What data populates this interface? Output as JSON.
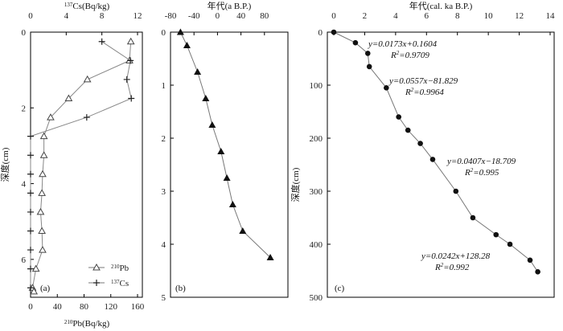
{
  "chart_data": [
    {
      "panel": "a",
      "type": "line",
      "panel_label": "(a)",
      "top_axis_title": "137Cs(Bq/kg)",
      "top_axis_sup": "137",
      "top_axis_rest": "Cs(Bq/kg)",
      "bottom_axis_title": "210Pb(Bq/kg)",
      "bottom_axis_sup": "210",
      "bottom_axis_rest": "Pb(Bq/kg)",
      "ylabel": "深度(cm)",
      "ylim": [
        0,
        7
      ],
      "top_xlim": [
        0,
        12
      ],
      "bottom_xlim": [
        0,
        160
      ],
      "y_ticks": [
        "0",
        "2",
        "4",
        "6"
      ],
      "top_ticks": [
        "0",
        "4",
        "8",
        "12"
      ],
      "bottom_ticks": [
        "0",
        "40",
        "80",
        "120",
        "160"
      ],
      "legend": [
        {
          "sup": "210",
          "rest": "Pb",
          "marker": "triangle"
        },
        {
          "sup": "137",
          "rest": "Cs",
          "marker": "plus"
        }
      ],
      "series": [
        {
          "name": "210Pb",
          "marker": "triangle",
          "axis": "bottom",
          "x": [
            150,
            148,
            85,
            57,
            30,
            20,
            20,
            18,
            17,
            15,
            17,
            18,
            8,
            3,
            5
          ],
          "y": [
            0.25,
            0.75,
            1.25,
            1.75,
            2.25,
            2.75,
            3.25,
            3.75,
            4.25,
            4.75,
            5.25,
            5.75,
            6.25,
            6.75,
            6.85
          ]
        },
        {
          "name": "137Cs",
          "marker": "plus",
          "axis": "top",
          "x": [
            8.0,
            11.2,
            10.8,
            11.3,
            6.3,
            0,
            0,
            0,
            0,
            0,
            0,
            0,
            0,
            0
          ],
          "y": [
            0.25,
            0.75,
            1.25,
            1.75,
            2.25,
            2.75,
            3.25,
            3.75,
            4.25,
            4.75,
            5.25,
            5.75,
            6.25,
            6.75
          ]
        }
      ]
    },
    {
      "panel": "b",
      "type": "line",
      "panel_label": "(b)",
      "top_axis_title": "年代(a B.P.)",
      "xlim": [
        -80,
        120
      ],
      "ylim": [
        0,
        5
      ],
      "top_ticks": [
        "-80",
        "-40",
        "0",
        "40",
        "80"
      ],
      "y_ticks": [
        "0",
        "1",
        "2",
        "3",
        "4",
        "5"
      ],
      "series": [
        {
          "name": "age",
          "marker": "triangle-filled",
          "x": [
            -63,
            -52,
            -34,
            -20,
            -9,
            6,
            16,
            26,
            43,
            90
          ],
          "y": [
            0.0,
            0.25,
            0.75,
            1.25,
            1.75,
            2.25,
            2.75,
            3.25,
            3.75,
            4.25
          ]
        }
      ]
    },
    {
      "panel": "c",
      "type": "scatter",
      "panel_label": "(c)",
      "top_axis_title": "年代(cal. ka B.P.)",
      "ylabel": "深度(cm)",
      "xlim": [
        0,
        14
      ],
      "ylim": [
        0,
        500
      ],
      "top_ticks": [
        "0",
        "2",
        "4",
        "6",
        "8",
        "10",
        "12",
        "14"
      ],
      "y_ticks": [
        "0",
        "100",
        "200",
        "300",
        "400",
        "500"
      ],
      "series": [
        {
          "name": "depth-age",
          "marker": "circle",
          "x": [
            0,
            1.4,
            2.2,
            2.3,
            3.4,
            4.2,
            4.8,
            5.6,
            6.4,
            7.9,
            9.0,
            10.5,
            11.4,
            12.7,
            13.2
          ],
          "y": [
            0,
            20,
            40,
            65,
            105,
            160,
            185,
            210,
            240,
            300,
            350,
            382,
            400,
            430,
            452
          ]
        }
      ],
      "annotations": [
        {
          "eq": "y=0.0173x+0.1604",
          "r2_value": "=0.9709"
        },
        {
          "eq": "y=0.0557x−81.829",
          "r2_value": "=0.9964"
        },
        {
          "eq": "y=0.0407x−18.709",
          "r2_value": "=0.995"
        },
        {
          "eq": "y=0.0242x+128.28",
          "r2_value": "=0.992"
        }
      ]
    }
  ]
}
